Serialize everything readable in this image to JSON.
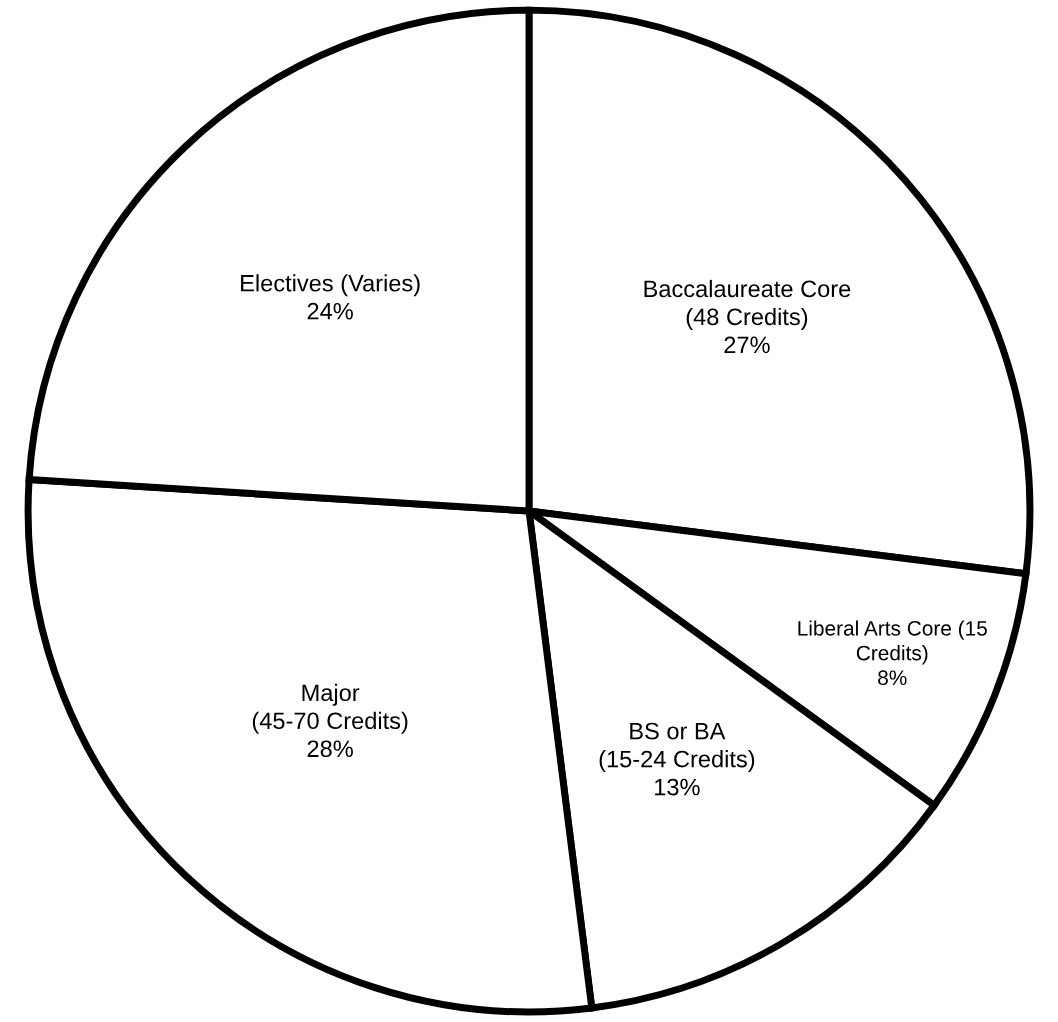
{
  "chart_data": {
    "type": "pie",
    "categories": [
      "Baccalaureate Core\n(48 Credits)",
      "Liberal Arts Core (15\nCredits)",
      "BS or BA\n(15-24 Credits)",
      "Major\n(45-70 Credits)",
      "Electives (Varies)"
    ],
    "values": [
      27,
      8,
      13,
      28,
      24
    ],
    "colors": [
      "#ffffff",
      "#ffffff",
      "#ffffff",
      "#ffffff",
      "#ffffff"
    ],
    "value_labels": [
      "27%",
      "8%",
      "13%",
      "28%",
      "24%"
    ],
    "legend": false
  }
}
